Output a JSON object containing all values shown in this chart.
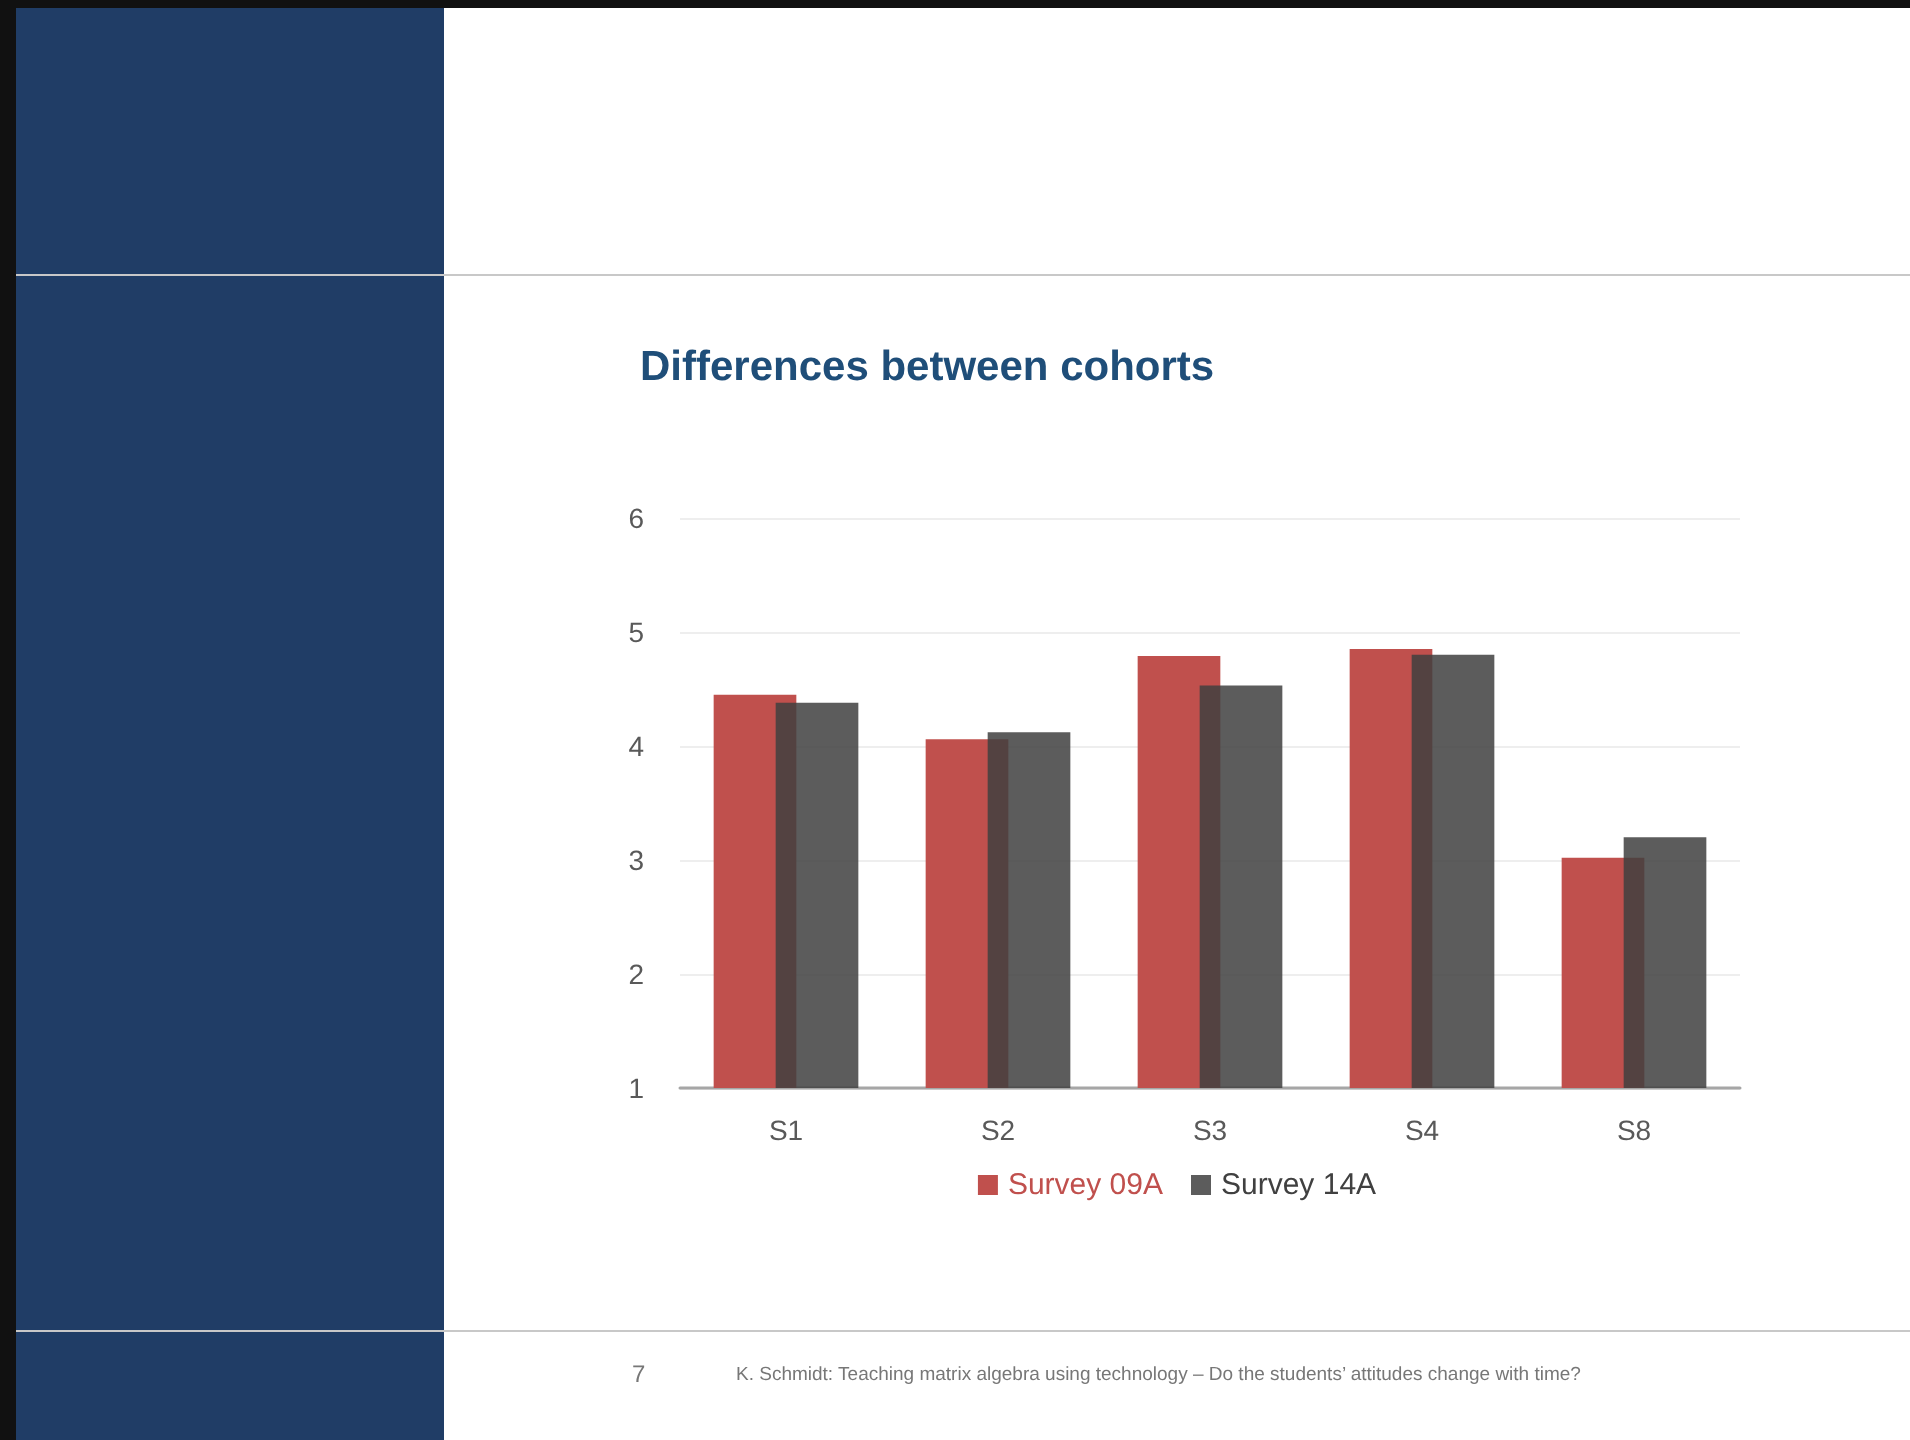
{
  "chart_data": {
    "type": "bar",
    "title": "Differences between cohorts",
    "categories": [
      "S1",
      "S2",
      "S3",
      "S4",
      "S8"
    ],
    "series": [
      {
        "name": "Survey 09A",
        "color": "#c0504d",
        "values": [
          4.45,
          4.06,
          4.79,
          4.85,
          3.02
        ]
      },
      {
        "name": "Survey 14A",
        "color": "#404040",
        "values": [
          4.38,
          4.12,
          4.53,
          4.8,
          3.2
        ]
      }
    ],
    "ylim": [
      1,
      6
    ],
    "yticks": [
      1,
      2,
      3,
      4,
      5,
      6
    ],
    "grid": "y",
    "legend": "bottom",
    "annotations": [
      "7",
      "K. Schmidt:  Teaching matrix algebra using technology – Do the students’ attitudes change with time?"
    ]
  }
}
